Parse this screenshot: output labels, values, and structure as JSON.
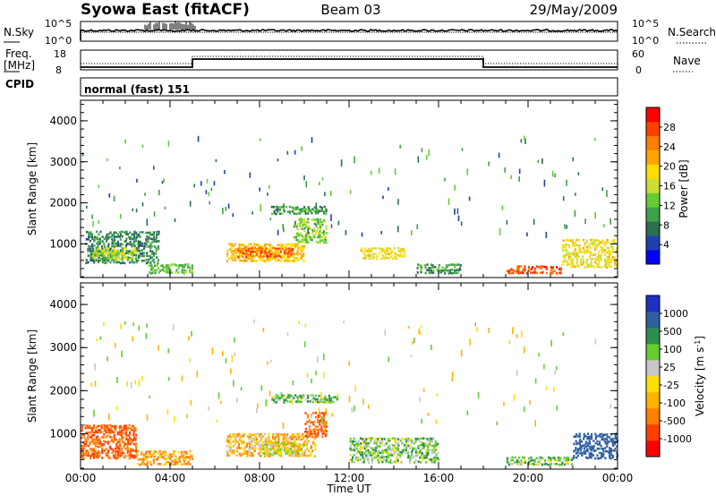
{
  "header": {
    "station": "Syowa East (fitACF)",
    "beam": "Beam 03",
    "date": "29/May/2009"
  },
  "panels": {
    "nsky_label": "N.Sky",
    "nsky_tick_top": "10^5",
    "nsky_tick_bottom": "10^0",
    "nsearch_label": "N.Search",
    "nsearch_tick_top": "10^5",
    "nsearch_tick_bottom": "10^0",
    "freq_label_top": "Freq.",
    "freq_label_bottom": "[MHz]",
    "freq_tick_top": "18",
    "freq_tick_bottom": "8",
    "nave_label": "Nave",
    "nave_tick_top": "60",
    "nave_tick_bottom": "0",
    "cpid_label": "CPID",
    "cpid_value": "normal (fast) 151"
  },
  "colorbars": {
    "power": {
      "label": "Power [dB]",
      "ticks": [
        "28",
        "24",
        "20",
        "16",
        "12",
        "8",
        "4"
      ],
      "colors": [
        "#0000ff",
        "#1f3fb0",
        "#2a6f4f",
        "#3fa04a",
        "#66cc33",
        "#ccdd33",
        "#ffdd00",
        "#ffa500",
        "#ff7f00",
        "#ff4000",
        "#ff0000"
      ]
    },
    "velocity": {
      "label": "Velocity [m s^-1]",
      "ticks": [
        "1000",
        "500",
        "100",
        "25",
        "-25",
        "-100",
        "-500",
        "-1000"
      ],
      "colors": [
        "#ff0000",
        "#ff4000",
        "#ff8000",
        "#ffb300",
        "#ffdd00",
        "#c8c8c8",
        "#66cc33",
        "#2a8f4f",
        "#2f5fa0",
        "#1f2fc0"
      ]
    }
  },
  "chart_data": [
    {
      "type": "heatmap",
      "name": "Power",
      "xlabel": "",
      "ylabel": "Slant Range [km]",
      "x_ticks": [
        "00:00",
        "04:00",
        "08:00",
        "12:00",
        "16:00",
        "20:00",
        "00:00"
      ],
      "y_ticks": [
        "1000",
        "2000",
        "3000",
        "4000"
      ],
      "xlim_hours": [
        0,
        24
      ],
      "ylim_km": [
        180,
        4500
      ],
      "colorbar": "Power [dB]",
      "regions": [
        {
          "t": [
            0.2,
            3.5
          ],
          "r": [
            500,
            1300
          ],
          "level": 9
        },
        {
          "t": [
            0.5,
            2.5
          ],
          "r": [
            600,
            900
          ],
          "level": 16
        },
        {
          "t": [
            3.0,
            5.0
          ],
          "r": [
            250,
            500
          ],
          "level": 12
        },
        {
          "t": [
            6.5,
            10.0
          ],
          "r": [
            550,
            1000
          ],
          "level": 20
        },
        {
          "t": [
            7.0,
            9.5
          ],
          "r": [
            650,
            900
          ],
          "level": 26
        },
        {
          "t": [
            9.5,
            11.0
          ],
          "r": [
            1000,
            1600
          ],
          "level": 14
        },
        {
          "t": [
            8.5,
            11.0
          ],
          "r": [
            1700,
            1900
          ],
          "level": 10
        },
        {
          "t": [
            12.5,
            14.5
          ],
          "r": [
            600,
            900
          ],
          "level": 18
        },
        {
          "t": [
            15.0,
            17.0
          ],
          "r": [
            250,
            500
          ],
          "level": 10
        },
        {
          "t": [
            19.0,
            21.5
          ],
          "r": [
            250,
            450
          ],
          "level": 26
        },
        {
          "t": [
            21.5,
            24.0
          ],
          "r": [
            400,
            1100
          ],
          "level": 18
        }
      ]
    },
    {
      "type": "heatmap",
      "name": "Velocity",
      "xlabel": "Time UT",
      "ylabel": "Slant Range [km]",
      "x_ticks": [
        "00:00",
        "04:00",
        "08:00",
        "12:00",
        "16:00",
        "20:00",
        "00:00"
      ],
      "y_ticks": [
        "1000",
        "2000",
        "3000",
        "4000"
      ],
      "xlim_hours": [
        0,
        24
      ],
      "ylim_km": [
        180,
        4500
      ],
      "colorbar": "Velocity [m s^-1]",
      "regions": [
        {
          "t": [
            0.0,
            2.5
          ],
          "r": [
            400,
            1200
          ],
          "level": -300
        },
        {
          "t": [
            2.5,
            5.0
          ],
          "r": [
            250,
            600
          ],
          "level": -100
        },
        {
          "t": [
            6.5,
            10.5
          ],
          "r": [
            450,
            1000
          ],
          "level": -60
        },
        {
          "t": [
            8.0,
            10.0
          ],
          "r": [
            500,
            800
          ],
          "level": 0
        },
        {
          "t": [
            10.0,
            11.0
          ],
          "r": [
            900,
            1500
          ],
          "level": -300
        },
        {
          "t": [
            8.5,
            11.5
          ],
          "r": [
            1700,
            1900
          ],
          "level": 80
        },
        {
          "t": [
            12.0,
            16.0
          ],
          "r": [
            300,
            900
          ],
          "level": 60
        },
        {
          "t": [
            19.0,
            22.0
          ],
          "r": [
            250,
            450
          ],
          "level": 60
        },
        {
          "t": [
            22.0,
            24.0
          ],
          "r": [
            400,
            1000
          ],
          "level": 400
        }
      ]
    }
  ]
}
